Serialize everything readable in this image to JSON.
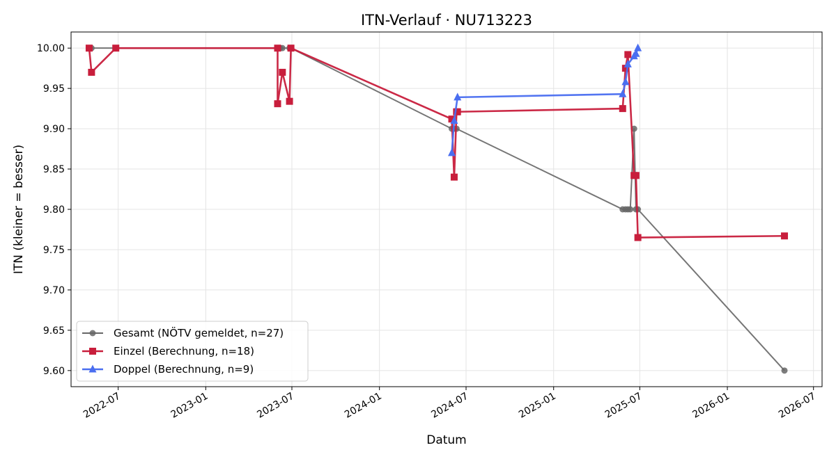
{
  "chart_data": {
    "type": "line",
    "title": "ITN-Verlauf · NU713223",
    "xlabel": "Datum",
    "ylabel": "ITN  (kleiner = besser)",
    "xlim": [
      "2022-03-24",
      "2026-07-19"
    ],
    "ylim": [
      9.58,
      10.02
    ],
    "grid": true,
    "legend_position": "lower-left",
    "x_ticks": [
      {
        "date": "2022-07-01",
        "label": "2022-07"
      },
      {
        "date": "2023-01-01",
        "label": "2023-01"
      },
      {
        "date": "2023-07-01",
        "label": "2023-07"
      },
      {
        "date": "2024-01-01",
        "label": "2024-01"
      },
      {
        "date": "2024-07-01",
        "label": "2024-07"
      },
      {
        "date": "2025-01-01",
        "label": "2025-01"
      },
      {
        "date": "2025-07-01",
        "label": "2025-07"
      },
      {
        "date": "2026-01-01",
        "label": "2026-01"
      },
      {
        "date": "2026-07-01",
        "label": "2026-07"
      }
    ],
    "y_ticks": [
      "9.60",
      "9.65",
      "9.70",
      "9.75",
      "9.80",
      "9.85",
      "9.90",
      "9.95",
      "10.00"
    ],
    "series": [
      {
        "name": "Gesamt (NÖTV gemeldet, n=27)",
        "color": "#666666",
        "marker": "circle",
        "points": [
          [
            "2022-05-01",
            10.0
          ],
          [
            "2022-05-06",
            10.0
          ],
          [
            "2022-06-26",
            10.0
          ],
          [
            "2023-06-01",
            10.0
          ],
          [
            "2023-06-06",
            10.0
          ],
          [
            "2023-06-11",
            10.0
          ],
          [
            "2023-06-26",
            10.0
          ],
          [
            "2023-06-29",
            10.0
          ],
          [
            "2024-06-01",
            9.9
          ],
          [
            "2024-06-06",
            9.9
          ],
          [
            "2024-06-11",
            9.9
          ],
          [
            "2025-05-26",
            9.8
          ],
          [
            "2025-06-01",
            9.8
          ],
          [
            "2025-06-06",
            9.8
          ],
          [
            "2025-06-11",
            9.8
          ],
          [
            "2025-06-19",
            9.9
          ],
          [
            "2025-06-23",
            9.8
          ],
          [
            "2025-06-27",
            9.8
          ],
          [
            "2026-05-01",
            9.6
          ]
        ]
      },
      {
        "name": "Einzel (Berechnung, n=18)",
        "color": "#c81e3c",
        "marker": "square",
        "points": [
          [
            "2022-05-01",
            10.0
          ],
          [
            "2022-05-06",
            9.97
          ],
          [
            "2022-06-26",
            10.0
          ],
          [
            "2023-06-01",
            10.0
          ],
          [
            "2023-06-01",
            9.931
          ],
          [
            "2023-06-11",
            9.97
          ],
          [
            "2023-06-26",
            9.934
          ],
          [
            "2023-06-29",
            10.0
          ],
          [
            "2024-06-01",
            9.912
          ],
          [
            "2024-06-06",
            9.84
          ],
          [
            "2024-06-11",
            9.921
          ],
          [
            "2024-06-13",
            9.921
          ],
          [
            "2025-05-26",
            9.925
          ],
          [
            "2025-06-01",
            9.975
          ],
          [
            "2025-06-06",
            9.992
          ],
          [
            "2025-06-19",
            9.842
          ],
          [
            "2025-06-23",
            9.842
          ],
          [
            "2025-06-27",
            9.765
          ],
          [
            "2026-05-01",
            9.767
          ]
        ]
      },
      {
        "name": "Doppel (Berechnung, n=9)",
        "color": "#4a6ef0",
        "marker": "triangle",
        "points": [
          [
            "2024-06-01",
            9.87
          ],
          [
            "2024-06-06",
            9.91
          ],
          [
            "2024-06-13",
            9.939
          ],
          [
            "2025-05-26",
            9.943
          ],
          [
            "2025-06-01",
            9.958
          ],
          [
            "2025-06-06",
            9.98
          ],
          [
            "2025-06-19",
            9.99
          ],
          [
            "2025-06-23",
            9.993
          ],
          [
            "2025-06-27",
            10.0
          ]
        ]
      }
    ]
  }
}
